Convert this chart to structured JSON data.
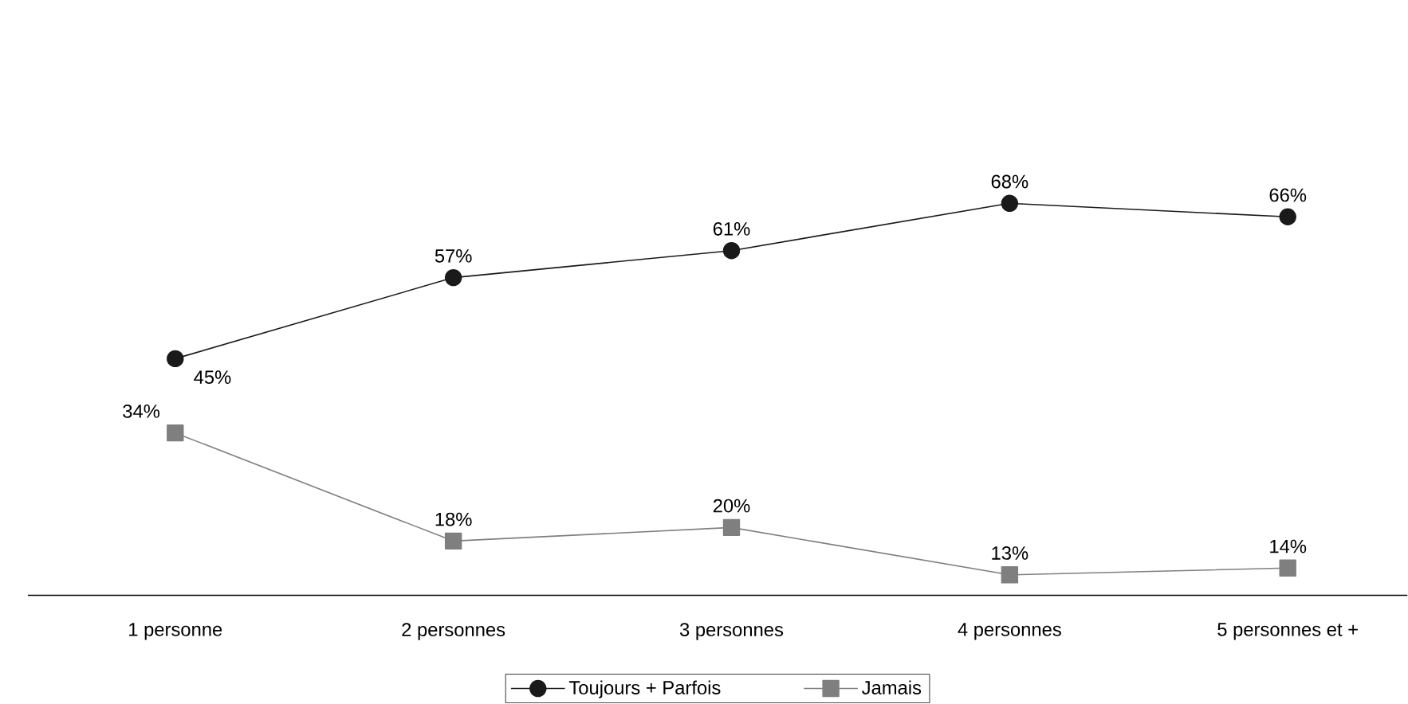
{
  "chart_data": {
    "type": "line",
    "categories": [
      "1 personne",
      "2 personnes",
      "3 personnes",
      "4 personnes",
      "5 personnes et +"
    ],
    "series": [
      {
        "name": "Toujours + Parfois",
        "color": "#1a1a1a",
        "marker": "circle",
        "values": [
          45,
          57,
          61,
          68,
          66
        ],
        "value_labels": [
          "45%",
          "57%",
          "61%",
          "68%",
          "66%"
        ]
      },
      {
        "name": "Jamais",
        "color": "#7f7f7f",
        "marker": "square",
        "values": [
          34,
          18,
          20,
          13,
          14
        ],
        "value_labels": [
          "34%",
          "18%",
          "20%",
          "13%",
          "14%"
        ]
      }
    ],
    "legend": "bottom",
    "tick_labels": "x",
    "grid": false
  }
}
